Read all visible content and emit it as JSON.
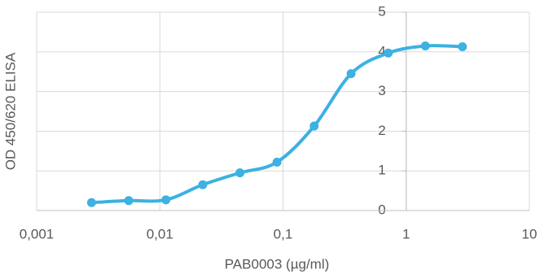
{
  "chart_data": {
    "type": "line",
    "x_label": "PAB0003 (µg/ml)",
    "y_label": "OD 450/620 ELISA",
    "x": [
      0.00279,
      0.00559,
      0.0112,
      0.0223,
      0.0447,
      0.0894,
      0.179,
      0.357,
      0.715,
      1.43,
      2.86
    ],
    "series": [
      {
        "color": "#3cb1e2",
        "values": [
          0.2,
          0.25,
          0.27,
          0.65,
          0.95,
          1.22,
          2.13,
          3.45,
          3.97,
          4.15,
          4.13
        ]
      }
    ],
    "xlim": [
      0.001,
      10
    ],
    "xticks": [
      {
        "value": 0.001,
        "label": "0,001"
      },
      {
        "value": 0.01,
        "label": "0,01"
      },
      {
        "value": 0.1,
        "label": "0,1"
      },
      1,
      10
    ],
    "x_log": true,
    "ylim": [
      0,
      5
    ],
    "yticks": [
      0,
      1,
      2,
      3,
      4,
      5
    ],
    "y_axis_at": 1,
    "grid": true,
    "smooth": true
  }
}
